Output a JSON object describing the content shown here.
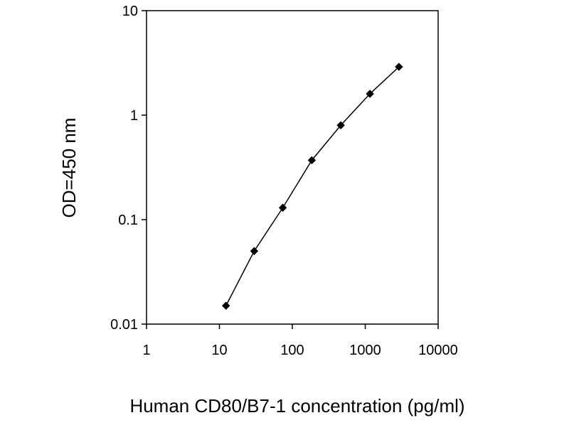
{
  "chart_data": {
    "type": "scatter",
    "title": "",
    "xlabel": "Human CD80/B7-1 concentration (pg/ml)",
    "ylabel": "OD=450 nm",
    "x_scale": "log",
    "y_scale": "log",
    "xlim": [
      1,
      10000
    ],
    "ylim": [
      0.01,
      10
    ],
    "x_ticks": [
      1,
      10,
      100,
      1000,
      10000
    ],
    "x_tick_labels": [
      "1",
      "10",
      "100",
      "1000",
      "10000"
    ],
    "y_ticks": [
      0.01,
      0.1,
      1,
      10
    ],
    "y_tick_labels": [
      "0.01",
      "0.1",
      "1",
      "10"
    ],
    "grid": false,
    "legend": "none",
    "series": [
      {
        "x": [
          12.3,
          30,
          74,
          185,
          462,
          1160,
          2900
        ],
        "y": [
          0.015,
          0.05,
          0.13,
          0.37,
          0.8,
          1.6,
          2.9
        ],
        "color": "#000000",
        "marker": "diamond",
        "line": true
      }
    ]
  }
}
